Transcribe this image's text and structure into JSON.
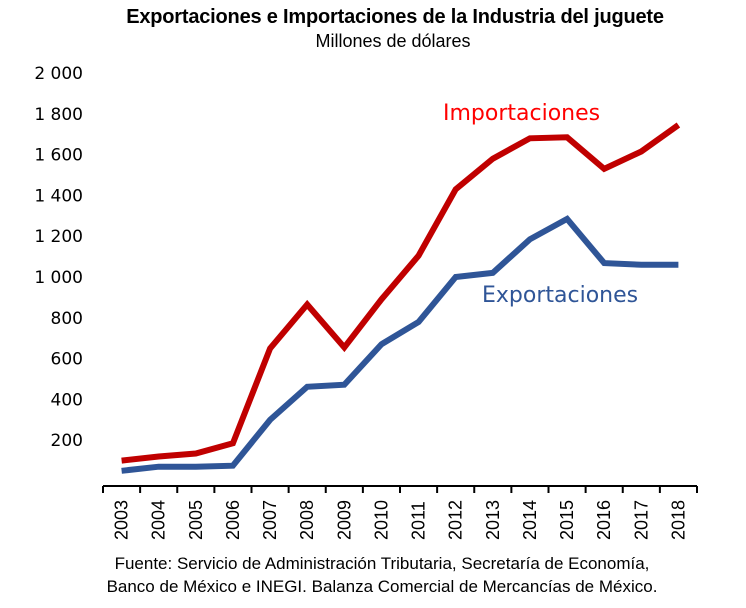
{
  "chart_data": {
    "type": "line",
    "title": "Exportaciones e Importaciones de la Industria del juguete",
    "subtitle": "Millones de dólares",
    "xlabel": "",
    "ylabel": "",
    "categories": [
      "2003",
      "2004",
      "2005",
      "2006",
      "2007",
      "2008",
      "2009",
      "2010",
      "2011",
      "2012",
      "2013",
      "2014",
      "2015",
      "2016",
      "2017",
      "2018"
    ],
    "ylim": [
      0,
      2000
    ],
    "yticks": [
      200,
      400,
      600,
      800,
      1000,
      1200,
      1400,
      1600,
      1800,
      2000
    ],
    "ytick_labels": [
      "200",
      "400",
      "600",
      "800",
      "1 000",
      "1 200",
      "1 400",
      "1 600",
      "1 800",
      "2 000"
    ],
    "grid": false,
    "legend": "inline labels",
    "series": [
      {
        "name": "Importaciones",
        "color": "#C00000",
        "label_color": "#FF0000",
        "values": [
          100,
          120,
          135,
          185,
          650,
          865,
          655,
          890,
          1105,
          1430,
          1580,
          1680,
          1685,
          1530,
          1615,
          1745
        ]
      },
      {
        "name": "Exportaciones",
        "color": "#2F5597",
        "label_color": "#2F5597",
        "values": [
          50,
          70,
          70,
          75,
          300,
          462,
          472,
          670,
          780,
          1000,
          1020,
          1185,
          1285,
          1068,
          1060,
          1060
        ]
      }
    ]
  },
  "footer": {
    "line1": "Fuente: Servicio de Administración Tributaria, Secretaría de Economía,",
    "line2": "Banco de México e INEGI. Balanza Comercial de Mercancías de México."
  }
}
